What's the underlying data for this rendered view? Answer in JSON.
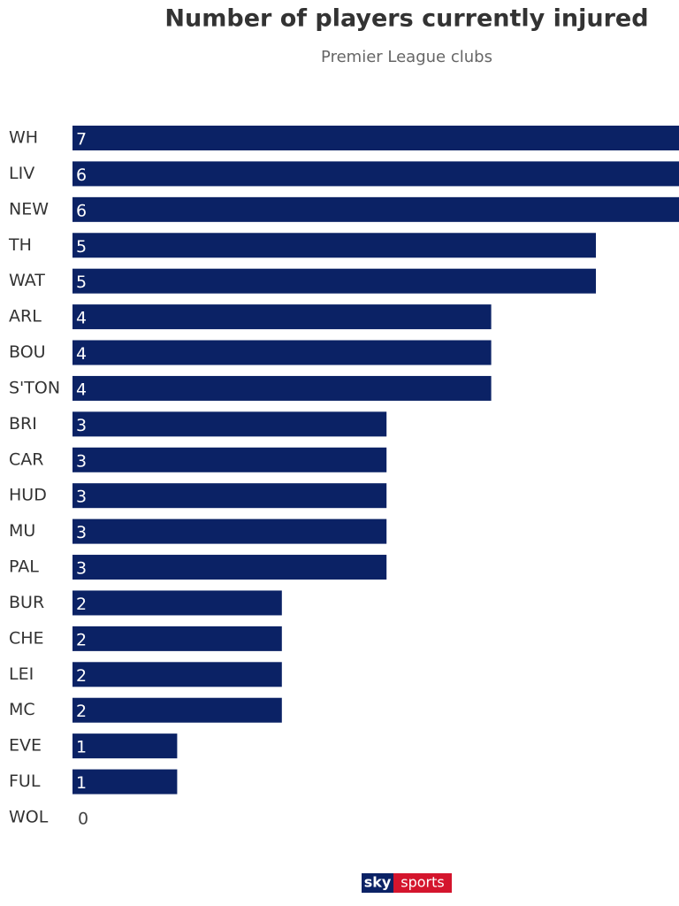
{
  "chart_data": {
    "type": "bar",
    "orientation": "horizontal",
    "title": "Number of players currently injured",
    "subtitle": "Premier League clubs",
    "categories": [
      "WH",
      "LIV",
      "NEW",
      "TH",
      "WAT",
      "ARL",
      "BOU",
      "S'TON",
      "BRI",
      "CAR",
      "HUD",
      "MU",
      "PAL",
      "BUR",
      "CHE",
      "LEI",
      "MC",
      "EVE",
      "FUL",
      "WOL"
    ],
    "values": [
      7,
      6,
      6,
      5,
      5,
      4,
      4,
      4,
      3,
      3,
      3,
      3,
      3,
      2,
      2,
      2,
      2,
      1,
      1,
      0
    ],
    "color": "#0b2265",
    "logo": {
      "left": "sky",
      "right": "sports"
    }
  }
}
